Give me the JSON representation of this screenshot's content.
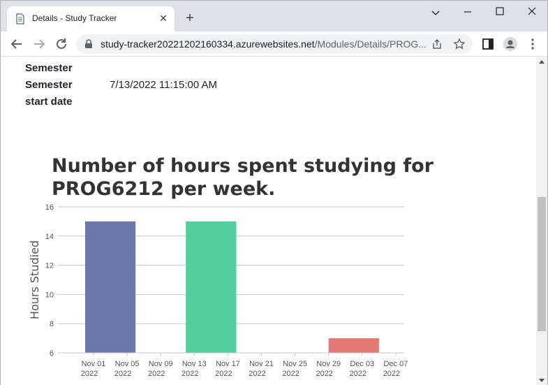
{
  "browser": {
    "tab_title": "Details - Study Tracker",
    "url_host": "study-tracker20221202160334.azurewebsites.net",
    "url_path": "/Modules/Details/PROG...",
    "icons": [
      "document-icon",
      "close-icon",
      "plus-icon",
      "minimize-icon",
      "maximize-icon",
      "close-window-icon",
      "back-arrow-icon",
      "forward-arrow-icon",
      "reload-icon",
      "lock-icon",
      "share-icon",
      "star-icon",
      "side-panel-icon",
      "profile-icon",
      "kebab-menu-icon"
    ]
  },
  "details": {
    "semester_label": "Semester",
    "start_label_line1": "Semester",
    "start_label_line2": "start date",
    "start_value": "7/13/2022 11:15:00 AM"
  },
  "chart_data": {
    "type": "bar",
    "title": "Number of hours spent studying for PROG6212 per week.",
    "ylabel": "Hours Studied",
    "xlabel": "",
    "ylim": [
      6,
      16
    ],
    "yticks": [
      6,
      8,
      10,
      12,
      14,
      16
    ],
    "grid": true,
    "xticks": [
      {
        "l1": "Nov 01",
        "l2": "2022"
      },
      {
        "l1": "Nov 05",
        "l2": "2022"
      },
      {
        "l1": "Nov 09",
        "l2": "2022"
      },
      {
        "l1": "Nov 13",
        "l2": "2022"
      },
      {
        "l1": "Nov 17",
        "l2": "2022"
      },
      {
        "l1": "Nov 21",
        "l2": "2022"
      },
      {
        "l1": "Nov 25",
        "l2": "2022"
      },
      {
        "l1": "Nov 29",
        "l2": "2022"
      },
      {
        "l1": "Dec 03",
        "l2": "2022"
      },
      {
        "l1": "Dec 07",
        "l2": "2022"
      }
    ],
    "bars": [
      {
        "start": "2022-10-31",
        "end": "2022-11-06",
        "value": 15,
        "color": "#6b78ab"
      },
      {
        "start": "2022-11-12",
        "end": "2022-11-18",
        "value": 15,
        "color": "#51cd9e"
      },
      {
        "start": "2022-11-29",
        "end": "2022-12-05",
        "value": 7,
        "color": "#e07a72"
      }
    ]
  }
}
